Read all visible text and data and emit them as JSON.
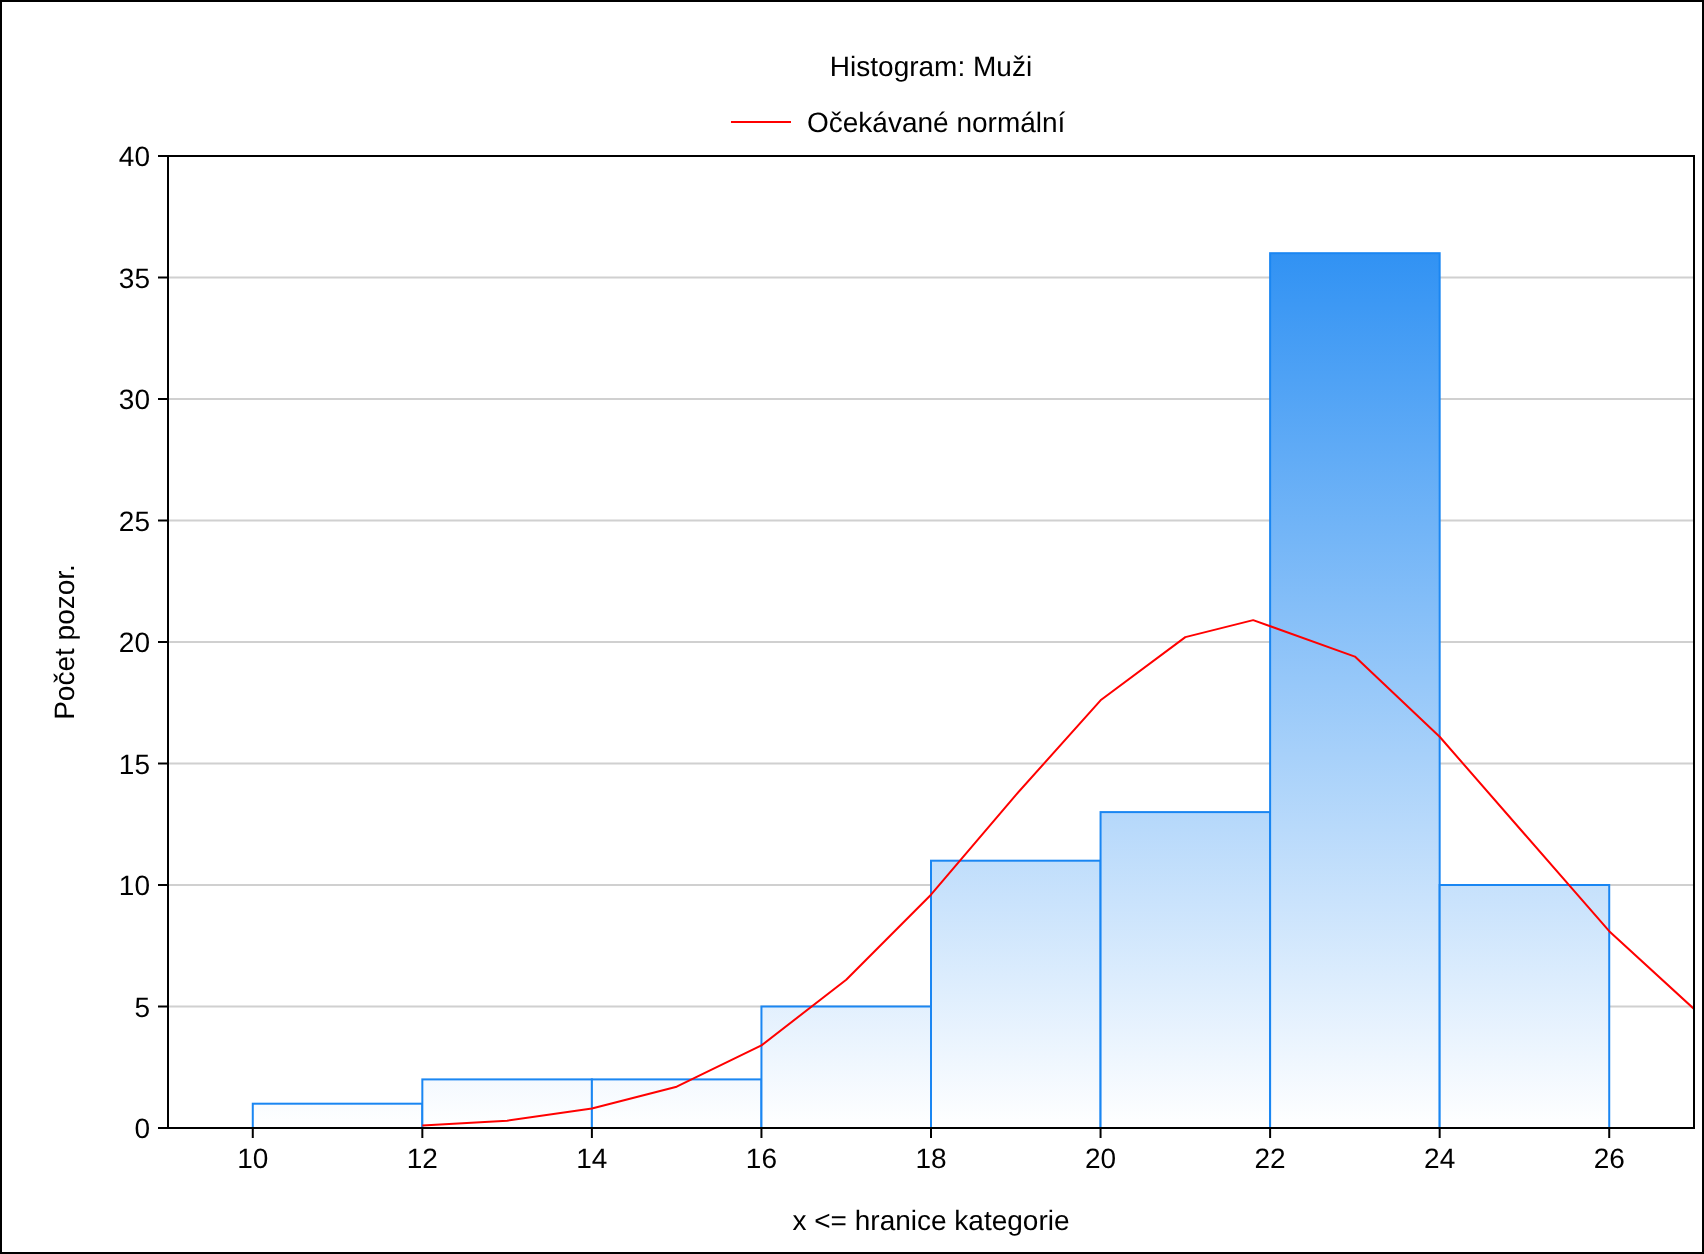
{
  "chart_data": {
    "type": "histogram",
    "title": "Histogram: Muži",
    "xlabel": "x <= hranice kategorie",
    "ylabel": "Počet pozor.",
    "bins": [
      10,
      12,
      14,
      16,
      18,
      20,
      22,
      24,
      26
    ],
    "series": [
      {
        "type": "histogram",
        "color": "#1a86f2",
        "values": [
          1,
          2,
          2,
          5,
          11,
          13,
          36,
          10
        ]
      },
      {
        "type": "line",
        "name": "Očekávané normální",
        "color": "#ff0000",
        "x": [
          12,
          13,
          14,
          15,
          16,
          17,
          18,
          19,
          20,
          21,
          21.8,
          23,
          24,
          25,
          26,
          27
        ],
        "values": [
          0.1,
          0.3,
          0.8,
          1.7,
          3.4,
          6.1,
          9.6,
          13.7,
          17.6,
          20.2,
          20.9,
          19.4,
          16.1,
          12.1,
          8.1,
          4.9
        ]
      }
    ],
    "xlim": [
      9,
      27
    ],
    "xticks": [
      10,
      12,
      14,
      16,
      18,
      20,
      22,
      24,
      26
    ],
    "ylim": [
      0,
      40
    ],
    "yticks": [
      0,
      5,
      10,
      15,
      20,
      25,
      30,
      35,
      40
    ],
    "grid": "y",
    "legend": "top"
  }
}
